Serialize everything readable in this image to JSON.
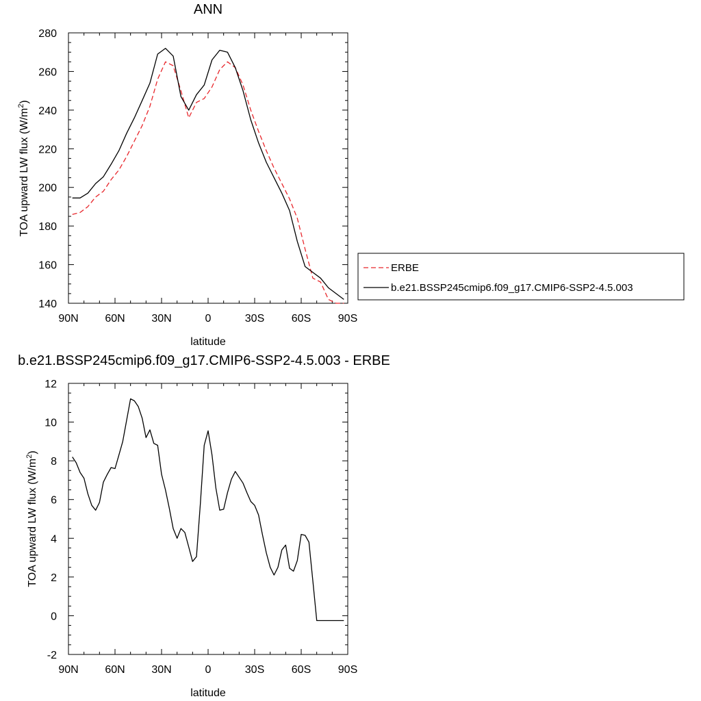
{
  "chart_data": [
    {
      "type": "line",
      "title": "ANN",
      "xlabel": "latitude",
      "ylabel_main": "TOA upward LW flux (W/m",
      "ylabel_sup": "2",
      "ylabel_close": ")",
      "xlim": [
        90,
        -90
      ],
      "ylim": [
        140,
        280
      ],
      "xtick_values": [
        90,
        60,
        30,
        0,
        -30,
        -60,
        -90
      ],
      "xtick_labels": [
        "90N",
        "60N",
        "30N",
        "0",
        "30S",
        "60S",
        "90S"
      ],
      "ytick_values": [
        140,
        160,
        180,
        200,
        220,
        240,
        260,
        280
      ],
      "ytick_labels": [
        "140",
        "160",
        "180",
        "200",
        "220",
        "240",
        "260",
        "280"
      ],
      "legend": {
        "placement": "right",
        "entries": [
          "ERBE",
          "b.e21.BSSP245cmip6.f09_g17.CMIP6-SSP2-4.5.003"
        ]
      },
      "series": [
        {
          "name": "ERBE",
          "color": "#e8262b",
          "dashed": true,
          "x": [
            87.5,
            82.5,
            77.5,
            72.5,
            67.5,
            62.5,
            57.5,
            52.5,
            47.5,
            42.5,
            37.5,
            32.5,
            27.5,
            22.5,
            17.5,
            12.5,
            7.5,
            2.5,
            -2.5,
            -7.5,
            -12.5,
            -17.5,
            -22.5,
            -27.5,
            -32.5,
            -37.5,
            -42.5,
            -47.5,
            -52.5,
            -57.5,
            -62.5,
            -67.5,
            -72.5,
            -77.5,
            -82.5,
            -87.5
          ],
          "values": [
            186,
            187,
            190,
            195,
            198,
            204,
            209,
            216,
            224,
            232,
            242,
            256,
            265,
            263,
            250,
            236,
            244,
            246,
            252,
            261,
            265,
            262,
            253,
            240,
            229,
            219,
            210,
            202,
            194,
            184,
            168,
            153,
            151,
            142,
            140,
            140
          ]
        },
        {
          "name": "b.e21.BSSP245cmip6.f09_g17.CMIP6-SSP2-4.5.003",
          "color": "#000000",
          "dashed": false,
          "x": [
            87.5,
            82.5,
            77.5,
            72.5,
            67.5,
            62.5,
            57.5,
            52.5,
            47.5,
            42.5,
            37.5,
            32.5,
            27.5,
            22.5,
            17.5,
            12.5,
            7.5,
            2.5,
            -2.5,
            -7.5,
            -12.5,
            -17.5,
            -22.5,
            -27.5,
            -32.5,
            -37.5,
            -42.5,
            -47.5,
            -52.5,
            -57.5,
            -62.5,
            -67.5,
            -72.5,
            -77.5,
            -82.5,
            -87.5
          ],
          "values": [
            194.5,
            194.5,
            197,
            202,
            205.5,
            212,
            219,
            228,
            236,
            245,
            254,
            269,
            272,
            268,
            247,
            240,
            248,
            253,
            266,
            271,
            270,
            262,
            250,
            235,
            223,
            213,
            205,
            197,
            188,
            172,
            159,
            156,
            153,
            148,
            145,
            142
          ]
        }
      ]
    },
    {
      "type": "line",
      "title": "b.e21.BSSP245cmip6.f09_g17.CMIP6-SSP2-4.5.003 - ERBE",
      "xlabel": "latitude",
      "ylabel_main": "TOA upward LW flux (W/m",
      "ylabel_sup": "2",
      "ylabel_close": ")",
      "xlim": [
        90,
        -90
      ],
      "ylim": [
        -2,
        12
      ],
      "xtick_values": [
        90,
        60,
        30,
        0,
        -30,
        -60,
        -90
      ],
      "xtick_labels": [
        "90N",
        "60N",
        "30N",
        "0",
        "30S",
        "60S",
        "90S"
      ],
      "ytick_values": [
        -2,
        0,
        2,
        4,
        6,
        8,
        10,
        12
      ],
      "ytick_labels": [
        "-2",
        "0",
        "2",
        "4",
        "6",
        "8",
        "10",
        "12"
      ],
      "series": [
        {
          "color": "#000000",
          "dashed": false,
          "x": [
            87.5,
            85,
            82.5,
            80,
            77.5,
            75,
            72.5,
            70,
            67.5,
            65,
            62.5,
            60,
            57.5,
            55,
            52.5,
            50,
            47.5,
            45,
            42.5,
            40,
            37.5,
            35,
            32.5,
            30,
            27.5,
            25,
            22.5,
            20,
            17.5,
            15,
            12.5,
            10,
            7.5,
            5,
            2.5,
            0,
            -2.5,
            -5,
            -7.5,
            -10,
            -12.5,
            -15,
            -17.5,
            -20,
            -22.5,
            -25,
            -27.5,
            -30,
            -32.5,
            -35,
            -37.5,
            -40,
            -42.5,
            -45,
            -47.5,
            -50,
            -52.5,
            -55,
            -57.5,
            -60,
            -62.5,
            -65,
            -67.5,
            -70,
            -72.5,
            -75,
            -77.5,
            -80,
            -82.5,
            -85,
            -87.5
          ],
          "values": [
            8.2,
            7.9,
            7.4,
            7.1,
            6.3,
            5.7,
            5.45,
            5.85,
            6.9,
            7.3,
            7.65,
            7.6,
            8.3,
            9.0,
            10.1,
            11.2,
            11.1,
            10.8,
            10.2,
            9.2,
            9.6,
            8.9,
            8.8,
            7.3,
            6.5,
            5.55,
            4.5,
            4.0,
            4.5,
            4.3,
            3.55,
            2.8,
            3.05,
            5.8,
            8.8,
            9.55,
            8.3,
            6.6,
            5.45,
            5.5,
            6.35,
            7.05,
            7.45,
            7.15,
            6.85,
            6.35,
            5.9,
            5.7,
            5.2,
            4.2,
            3.25,
            2.5,
            2.1,
            2.5,
            3.4,
            3.65,
            2.45,
            2.3,
            2.85,
            4.2,
            4.15,
            3.8,
            1.8,
            -0.25,
            -0.25,
            -0.25,
            -0.25,
            -0.25,
            -0.25,
            -0.25,
            -0.25
          ]
        }
      ]
    }
  ]
}
